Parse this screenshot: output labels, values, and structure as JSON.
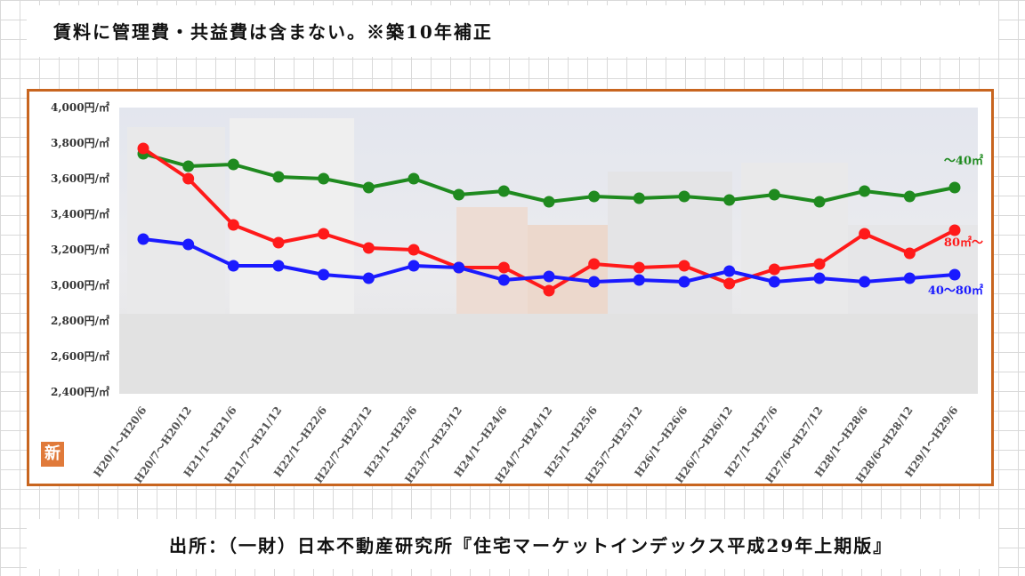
{
  "note": "賃料に管理費・共益費は含まない。※築10年補正",
  "source": "出所：（一財）日本不動産研究所『住宅マーケットインデックス平成29年上期版』",
  "badge": "新",
  "colors": {
    "frame": "#c8651f",
    "series_small": "#1f8a1f",
    "series_large": "#ff1a1a",
    "series_mid": "#1a1aff"
  },
  "chart_data": {
    "type": "line",
    "y_tick_labels": [
      "4,000円/㎡",
      "3,800円/㎡",
      "3,600円/㎡",
      "3,400円/㎡",
      "3,200円/㎡",
      "3,000円/㎡",
      "2,800円/㎡",
      "2,600円/㎡",
      "2,400円/㎡"
    ],
    "ylim": [
      2400,
      4000
    ],
    "categories": [
      "H20/1～H20/6",
      "H20/7～H20/12",
      "H21/1～H21/6",
      "H21/7～H21/12",
      "H22/1～H22/6",
      "H22/7～H22/12",
      "H23/1～H23/6",
      "H23/7～H23/12",
      "H24/1～H24/6",
      "H24/7～H24/12",
      "H25/1～H25/6",
      "H25/7～H25/12",
      "H26/1～H26/6",
      "H26/7～H26/12",
      "H27/1～H27/6",
      "H27/6～H27/12",
      "H28/1～H28/6",
      "H28/6～H28/12",
      "H29/1～H29/6"
    ],
    "series": [
      {
        "name": "～40㎡",
        "color": "#1f8a1f",
        "values": [
          3740,
          3670,
          3680,
          3610,
          3600,
          3550,
          3600,
          3510,
          3530,
          3470,
          3500,
          3490,
          3500,
          3480,
          3510,
          3470,
          3530,
          3500,
          3550
        ]
      },
      {
        "name": "80㎡～",
        "color": "#ff1a1a",
        "values": [
          3770,
          3600,
          3340,
          3240,
          3290,
          3210,
          3200,
          3100,
          3100,
          2970,
          3120,
          3100,
          3110,
          3010,
          3090,
          3120,
          3290,
          3180,
          3310
        ]
      },
      {
        "name": "40～80㎡",
        "color": "#1a1aff",
        "values": [
          3260,
          3230,
          3110,
          3110,
          3060,
          3040,
          3110,
          3100,
          3030,
          3050,
          3020,
          3030,
          3020,
          3080,
          3020,
          3040,
          3020,
          3040,
          3060
        ]
      }
    ],
    "grid": false,
    "legend": "inline labels at right end of each line"
  }
}
